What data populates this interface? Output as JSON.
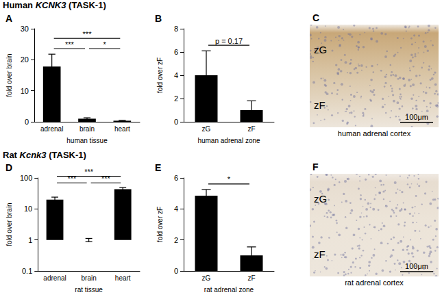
{
  "headers": [
    "Human KCNK3 (TASK-1)",
    "Rat Kcnk3 (TASK-1)"
  ],
  "chart_data": [
    {
      "type": "bar",
      "title": "A",
      "ylabel": "fold over brain",
      "xlabel": "human tissue",
      "categories": [
        "adrenal",
        "brain",
        "heart"
      ],
      "values": [
        17.8,
        1.0,
        0.35
      ],
      "errors": [
        4.0,
        0.3,
        0.1
      ],
      "color": "#000000",
      "ylim": [
        0,
        30
      ],
      "yticks": [
        0,
        10,
        20,
        30
      ],
      "grid": false,
      "annotations": [
        {
          "from": "adrenal",
          "to": "brain",
          "label": "***"
        },
        {
          "from": "brain",
          "to": "heart",
          "label": "*"
        },
        {
          "from": "adrenal",
          "to": "heart",
          "label": "***"
        }
      ]
    },
    {
      "type": "bar",
      "title": "B",
      "ylabel": "fold over zF",
      "xlabel": "human adrenal zone",
      "categories": [
        "zG",
        "zF"
      ],
      "values": [
        4.0,
        1.0
      ],
      "errors": [
        2.1,
        0.8
      ],
      "color": "#000000",
      "ylim": [
        0,
        8
      ],
      "yticks": [
        0,
        2,
        4,
        6,
        8
      ],
      "grid": false,
      "annotations": [
        {
          "from": "zG",
          "to": "zF",
          "label": "p = 0.17"
        }
      ]
    },
    {
      "type": "bar",
      "title": "D",
      "ylabel": "fold over brain",
      "xlabel": "rat tissue",
      "categories": [
        "adrenal",
        "brain",
        "heart"
      ],
      "values": [
        20,
        1.0,
        43
      ],
      "errors": [
        4,
        0.12,
        6
      ],
      "color": "#000000",
      "log": "y",
      "ylim": [
        0.1,
        100
      ],
      "yticks": [
        0.1,
        1,
        10,
        100
      ],
      "grid": false,
      "annotations": [
        {
          "from": "adrenal",
          "to": "brain",
          "label": "***"
        },
        {
          "from": "brain",
          "to": "heart",
          "label": "***"
        },
        {
          "from": "adrenal",
          "to": "heart",
          "label": "***"
        }
      ]
    },
    {
      "type": "bar",
      "title": "E",
      "ylabel": "fold over zF",
      "xlabel": "rat adrenal zone",
      "categories": [
        "zG",
        "zF"
      ],
      "values": [
        4.85,
        1.0
      ],
      "errors": [
        0.4,
        0.55
      ],
      "color": "#000000",
      "ylim": [
        0,
        6
      ],
      "yticks": [
        0,
        2,
        4,
        6
      ],
      "grid": false,
      "annotations": [
        {
          "from": "zG",
          "to": "zF",
          "label": "*"
        }
      ]
    }
  ],
  "images": [
    {
      "title": "C",
      "labels": [
        "zG",
        "zF"
      ],
      "scale_bar": "100μm",
      "caption": "human adrenal cortex"
    },
    {
      "title": "F",
      "labels": [
        "zG",
        "zF"
      ],
      "scale_bar": "100μm",
      "caption": "rat adrenal cortex"
    }
  ]
}
